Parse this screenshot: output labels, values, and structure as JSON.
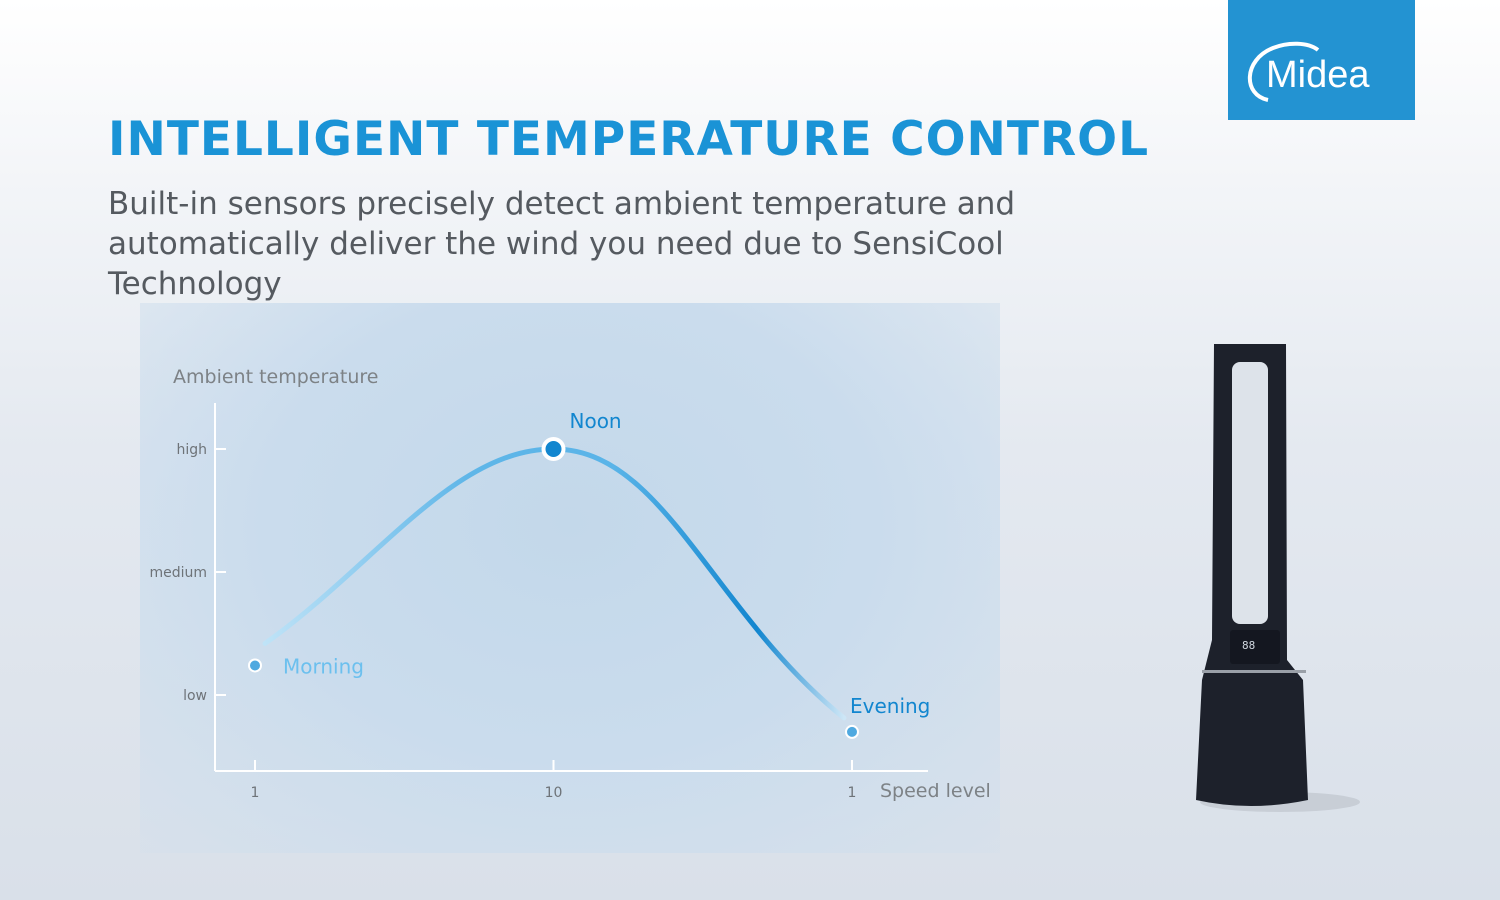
{
  "brand": {
    "logo_text": "Midea",
    "color": "#2393d2"
  },
  "header": {
    "title": "INTELLIGENT TEMPERATURE CONTROL",
    "subtitle": "Built-in sensors precisely detect ambient temperature and automatically deliver the wind you need due to SensiCool Technology"
  },
  "product": {
    "display_text": "88"
  },
  "chart_data": {
    "type": "line",
    "ylabel": "Ambient temperature",
    "xlabel": "Speed level",
    "y_ticks": [
      "low",
      "medium",
      "high"
    ],
    "x_ticks": [
      "1",
      "10",
      "1"
    ],
    "ylim": [
      0.4,
      3.4
    ],
    "points": [
      {
        "label": "Morning",
        "x": 0,
        "speed": "1",
        "y": 1.24
      },
      {
        "label": "Noon",
        "x": 1,
        "speed": "10",
        "y": 3.0
      },
      {
        "label": "Evening",
        "x": 2,
        "speed": "1",
        "y": 0.7
      }
    ],
    "colors": {
      "light": "#6cc0ee",
      "dark": "#1286cf"
    }
  }
}
